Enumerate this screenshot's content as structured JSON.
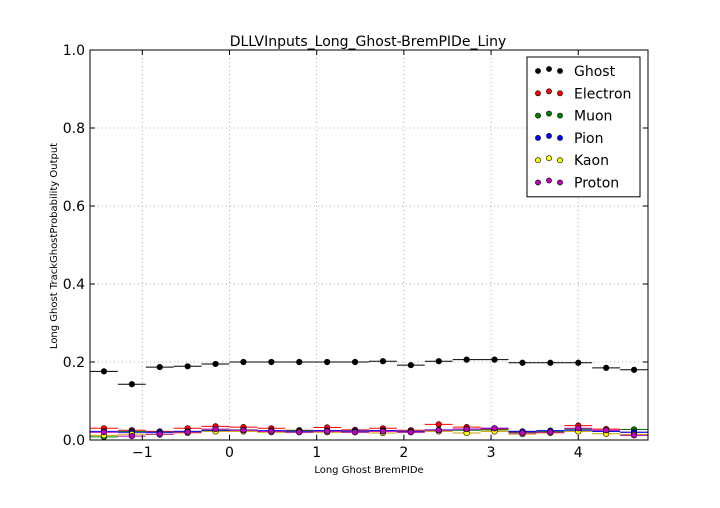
{
  "chart_data": {
    "type": "scatter",
    "title": "DLLVInputs_Long_Ghost-BremPIDe_Liny",
    "xlabel": "Long Ghost BremPIDe",
    "ylabel": "Long Ghost TrackGhostProbability Output",
    "xlim": [
      -1.6,
      4.8
    ],
    "ylim": [
      0.0,
      1.0
    ],
    "grid": true,
    "legend_position": "top-right",
    "xticks": [
      -1,
      0,
      1,
      2,
      3,
      4
    ],
    "xtick_labels": [
      "−1",
      "0",
      "1",
      "2",
      "3",
      "4"
    ],
    "yticks": [
      0.0,
      0.2,
      0.4,
      0.6,
      0.8,
      1.0
    ],
    "ytick_labels": [
      "0.0",
      "0.2",
      "0.4",
      "0.6",
      "0.8",
      "1.0"
    ],
    "bin_edges": [
      -1.6,
      -1.28,
      -0.96,
      -0.64,
      -0.32,
      0.0,
      0.32,
      0.64,
      0.96,
      1.28,
      1.6,
      1.92,
      2.24,
      2.56,
      2.88,
      3.2,
      3.52,
      3.84,
      4.16,
      4.48,
      4.8
    ],
    "x": [
      -1.44,
      -1.12,
      -0.8,
      -0.48,
      -0.16,
      0.16,
      0.48,
      0.8,
      1.12,
      1.44,
      1.76,
      2.08,
      2.4,
      2.72,
      3.04,
      3.36,
      3.68,
      4.0,
      4.32,
      4.64
    ],
    "series": [
      {
        "name": "Ghost",
        "color": "#000000",
        "line_color": "#000000",
        "values": [
          0.176,
          0.143,
          0.187,
          0.189,
          0.195,
          0.2,
          0.2,
          0.2,
          0.2,
          0.2,
          0.202,
          0.192,
          0.202,
          0.206,
          0.206,
          0.198,
          0.198,
          0.198,
          0.185,
          0.18
        ]
      },
      {
        "name": "Electron",
        "color": "#ff0000",
        "line_color": "#ff0000",
        "values": [
          0.03,
          0.025,
          0.022,
          0.03,
          0.035,
          0.033,
          0.03,
          0.025,
          0.032,
          0.026,
          0.03,
          0.025,
          0.04,
          0.033,
          0.028,
          0.022,
          0.02,
          0.037,
          0.028,
          0.02
        ]
      },
      {
        "name": "Muon",
        "color": "#008000",
        "line_color": "#008000",
        "values": [
          0.008,
          0.022,
          0.02,
          0.022,
          0.025,
          0.026,
          0.022,
          0.024,
          0.024,
          0.022,
          0.024,
          0.022,
          0.025,
          0.025,
          0.026,
          0.02,
          0.022,
          0.028,
          0.022,
          0.027
        ]
      },
      {
        "name": "Pion",
        "color": "#0000ff",
        "line_color": "#0000ff",
        "values": [
          0.022,
          0.02,
          0.02,
          0.022,
          0.024,
          0.025,
          0.024,
          0.022,
          0.024,
          0.023,
          0.024,
          0.022,
          0.026,
          0.028,
          0.03,
          0.022,
          0.024,
          0.025,
          0.022,
          0.02
        ]
      },
      {
        "name": "Kaon",
        "color": "#ffff00",
        "line_color": "#c8a000",
        "values": [
          0.012,
          0.015,
          0.014,
          0.018,
          0.022,
          0.022,
          0.02,
          0.02,
          0.02,
          0.02,
          0.018,
          0.02,
          0.022,
          0.018,
          0.022,
          0.015,
          0.018,
          0.022,
          0.016,
          0.014
        ]
      },
      {
        "name": "Proton",
        "color": "#bf00bf",
        "line_color": "#bf00bf",
        "values": [
          0.02,
          0.01,
          0.015,
          0.02,
          0.028,
          0.025,
          0.022,
          0.02,
          0.022,
          0.02,
          0.022,
          0.02,
          0.025,
          0.028,
          0.03,
          0.018,
          0.02,
          0.03,
          0.025,
          0.012
        ]
      }
    ]
  }
}
